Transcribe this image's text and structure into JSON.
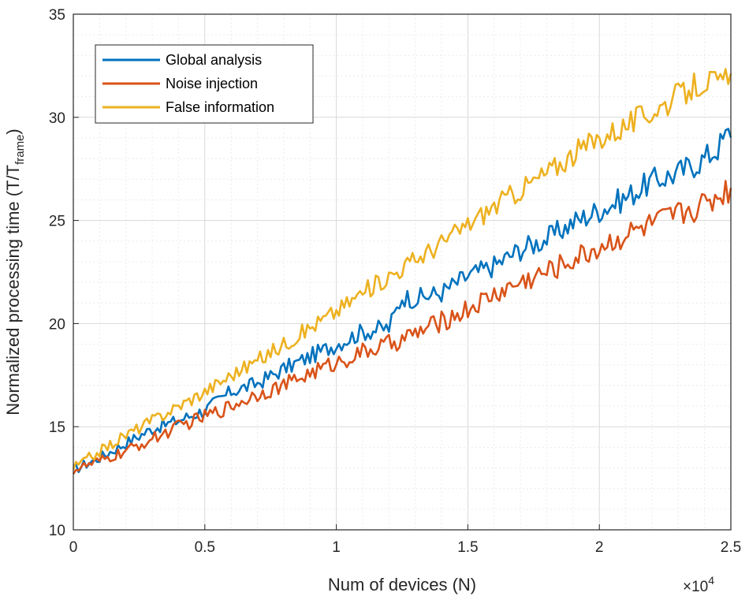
{
  "chart_data": {
    "type": "line",
    "title": "",
    "xlabel": "Num of devices (N)",
    "ylabel_main": "Normalized processing time (T/T",
    "ylabel_sub": "frame",
    "ylabel_close": ")",
    "x_multiplier": {
      "base": "×10",
      "exponent": "4"
    },
    "xlim": [
      0,
      2.5
    ],
    "ylim": [
      10,
      35
    ],
    "xticks": [
      0,
      0.5,
      1,
      1.5,
      2,
      2.5
    ],
    "xtick_labels": [
      "0",
      "0.5",
      "1",
      "1.5",
      "2",
      "2.5"
    ],
    "yticks": [
      10,
      15,
      20,
      25,
      30,
      35
    ],
    "ytick_labels": [
      "10",
      "15",
      "20",
      "25",
      "30",
      "35"
    ],
    "grid": true,
    "minor_grid": true,
    "legend_position": "top-left",
    "series": [
      {
        "name": "Global analysis",
        "color": "#0072BD",
        "x": [
          0,
          0.1,
          0.2,
          0.3,
          0.4,
          0.5,
          0.6,
          0.7,
          0.8,
          0.9,
          1.0,
          1.1,
          1.2,
          1.25,
          1.3,
          1.4,
          1.5,
          1.6,
          1.7,
          1.8,
          1.9,
          2.0,
          2.1,
          2.2,
          2.3,
          2.4,
          2.45,
          2.5
        ],
        "y": [
          12.9,
          13.5,
          14.2,
          14.9,
          15.3,
          15.8,
          16.7,
          17.1,
          17.8,
          18.4,
          19.0,
          19.6,
          19.8,
          21.3,
          21.2,
          21.5,
          22.3,
          22.8,
          23.6,
          24.1,
          24.9,
          25.5,
          26.1,
          26.9,
          27.3,
          28.0,
          28.5,
          29.4
        ]
      },
      {
        "name": "Noise injection",
        "color": "#D95319",
        "x": [
          0,
          0.1,
          0.2,
          0.3,
          0.4,
          0.5,
          0.6,
          0.7,
          0.8,
          0.9,
          1.0,
          1.1,
          1.2,
          1.3,
          1.4,
          1.5,
          1.6,
          1.7,
          1.8,
          1.9,
          2.0,
          2.1,
          2.2,
          2.3,
          2.4,
          2.5
        ],
        "y": [
          12.9,
          13.3,
          13.8,
          14.4,
          15.0,
          15.5,
          16.0,
          16.6,
          17.0,
          17.6,
          18.1,
          18.6,
          19.0,
          19.5,
          20.1,
          20.7,
          21.4,
          22.0,
          22.5,
          23.1,
          23.7,
          24.3,
          24.8,
          25.3,
          25.8,
          26.6
        ]
      },
      {
        "name": "False information",
        "color": "#EDB120",
        "x": [
          0,
          0.1,
          0.2,
          0.3,
          0.4,
          0.5,
          0.6,
          0.7,
          0.8,
          0.9,
          1.0,
          1.1,
          1.2,
          1.3,
          1.4,
          1.5,
          1.6,
          1.7,
          1.8,
          1.9,
          2.0,
          2.1,
          2.2,
          2.3,
          2.4,
          2.45,
          2.5
        ],
        "y": [
          13.0,
          13.8,
          14.6,
          15.3,
          16.0,
          16.7,
          17.5,
          18.2,
          19.0,
          19.8,
          20.6,
          21.5,
          22.3,
          23.1,
          23.9,
          24.8,
          25.7,
          26.5,
          27.3,
          28.2,
          29.0,
          29.6,
          30.3,
          31.0,
          31.8,
          31.6,
          31.8
        ]
      }
    ]
  }
}
